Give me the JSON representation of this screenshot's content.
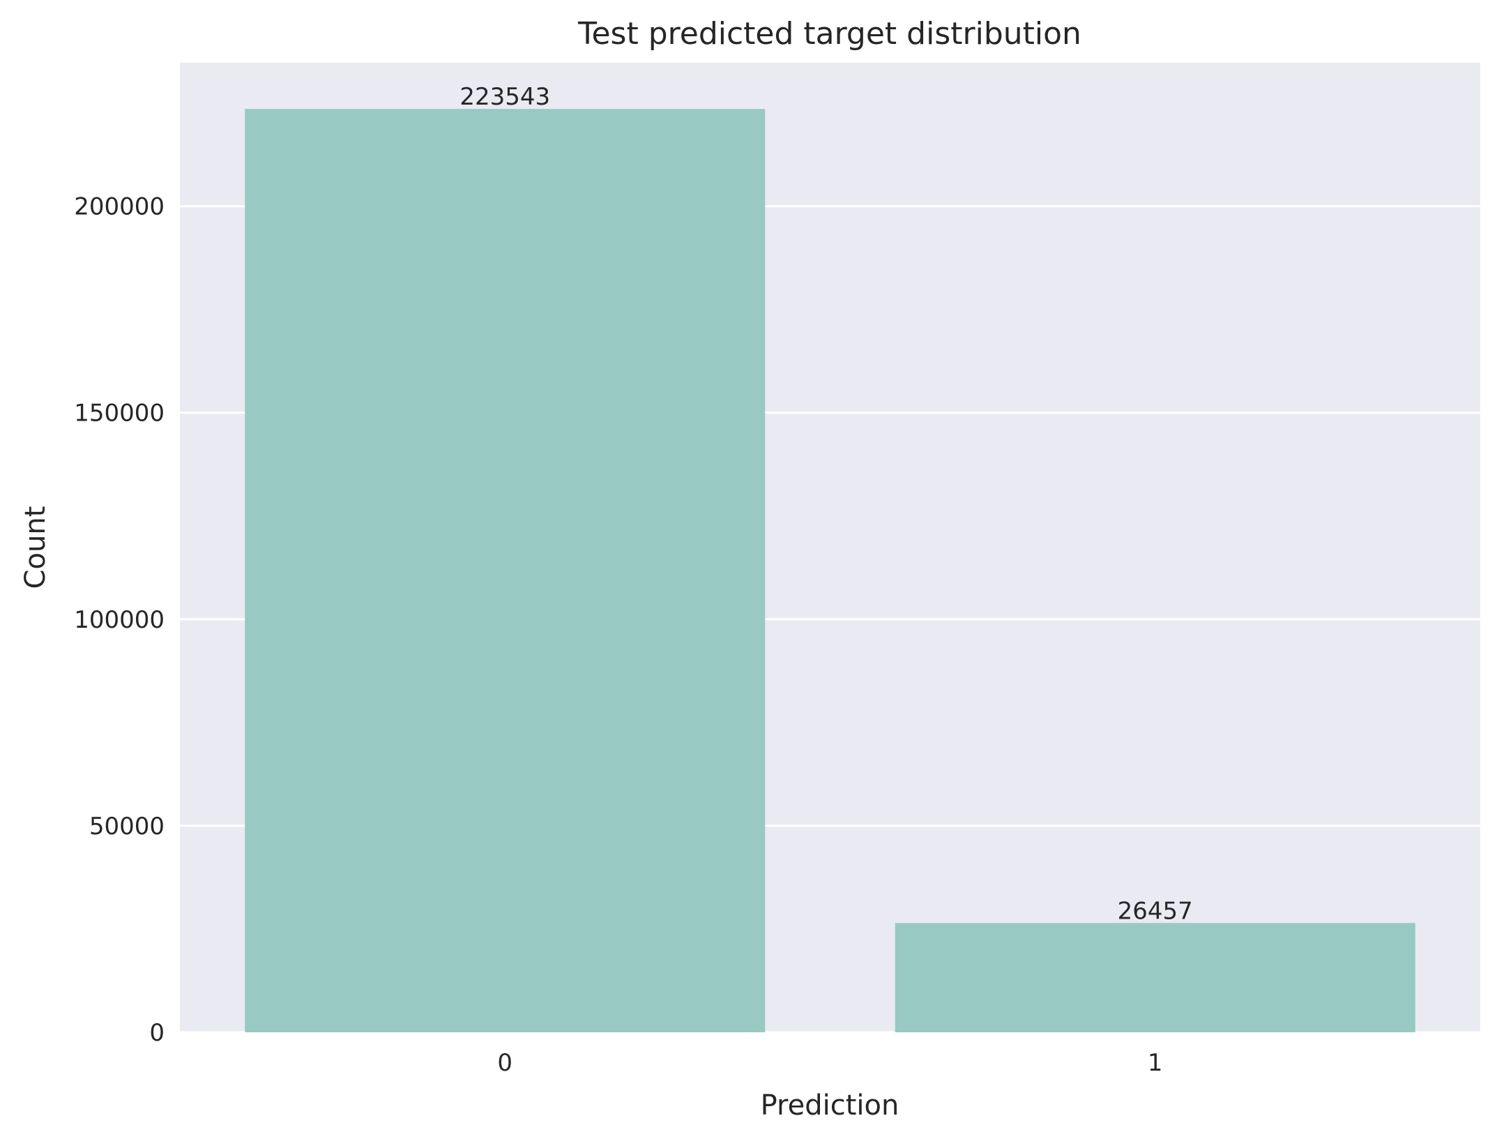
{
  "chart_data": {
    "type": "bar",
    "title": "Test predicted target distribution",
    "xlabel": "Prediction",
    "ylabel": "Count",
    "categories": [
      "0",
      "1"
    ],
    "values": [
      223543,
      26457
    ],
    "data_labels": [
      "223543",
      "26457"
    ],
    "yticks": [
      0,
      50000,
      100000,
      150000,
      200000
    ],
    "ytick_labels": [
      "0",
      "50000",
      "100000",
      "150000",
      "200000"
    ],
    "ylim": [
      0,
      234720
    ],
    "grid": true,
    "legend": "none",
    "colors": {
      "bar": "#98c9c2",
      "plot_background": "#eaeaf2",
      "grid": "#ffffff",
      "text": "#262626"
    }
  }
}
